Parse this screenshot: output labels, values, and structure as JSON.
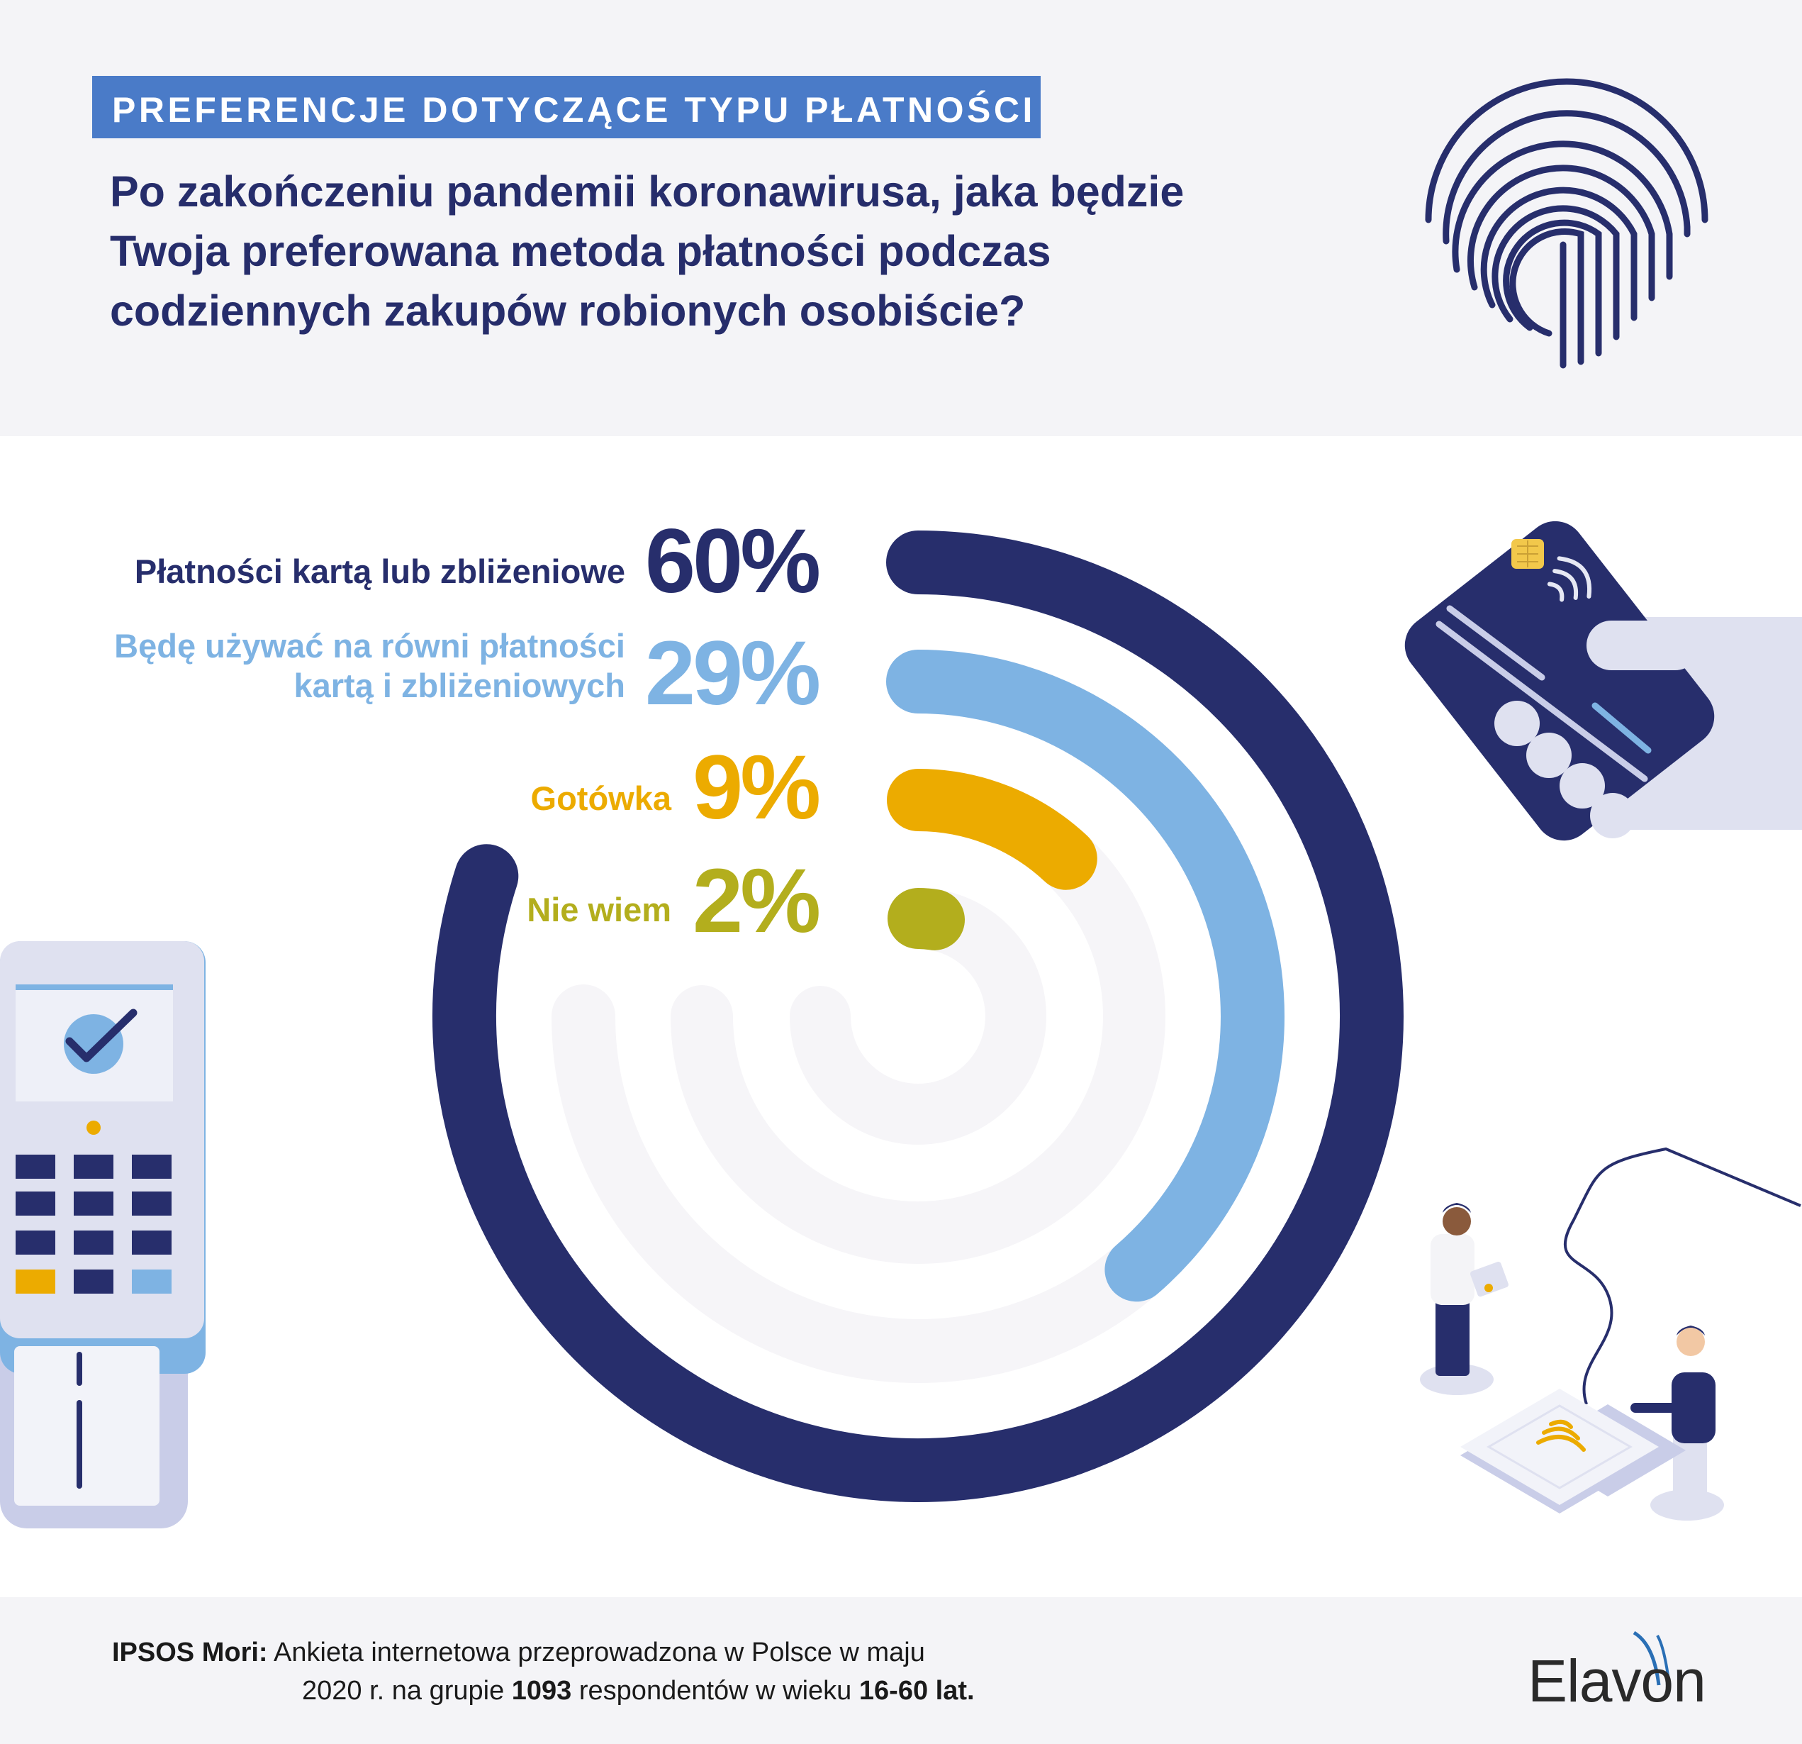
{
  "section_tag": "PREFERENCJE DOTYCZĄCE TYPU PŁATNOŚCI",
  "question_lines": [
    "Po zakończeniu pandemii koronawirusa, jaka będzie",
    "Twoja preferowana metoda płatności podczas",
    "codziennych zakupów robionych osobiście?"
  ],
  "chart_data": {
    "type": "radial-bar",
    "series": [
      {
        "label": "Płatności kartą lub zbliżeniowe",
        "value": 60,
        "value_label": "60%",
        "color": "#272e6c"
      },
      {
        "label": "Będę używać na równi płatności kartą i zbliżeniowych",
        "label_lines": [
          "Będę używać na równi płatności",
          "kartą i zbliżeniowych"
        ],
        "value": 29,
        "value_label": "29%",
        "color": "#7eb3e3"
      },
      {
        "label": "Gotówka",
        "value": 9,
        "value_label": "9%",
        "color": "#ecab00"
      },
      {
        "label": "Nie wiem",
        "value": 2,
        "value_label": "2%",
        "color": "#b3ae1d"
      }
    ],
    "track_color": "#f6f5f8",
    "value_range": [
      0,
      100
    ]
  },
  "source": {
    "label": "IPSOS Mori:",
    "line1": "Ankieta internetowa przeprowadzona w Polsce w maju",
    "line2_a": "2020 r. na grupie ",
    "line2_b": "1093",
    "line2_c": " respondentów w wieku ",
    "line2_d": "16-60 lat."
  },
  "brand": "Elavon",
  "icons": [
    "fingerprint-icon",
    "contactless-card-icon",
    "payment-terminal-icon",
    "checkmark-icon",
    "people-contactless-illustration",
    "contactless-pad-icon"
  ]
}
